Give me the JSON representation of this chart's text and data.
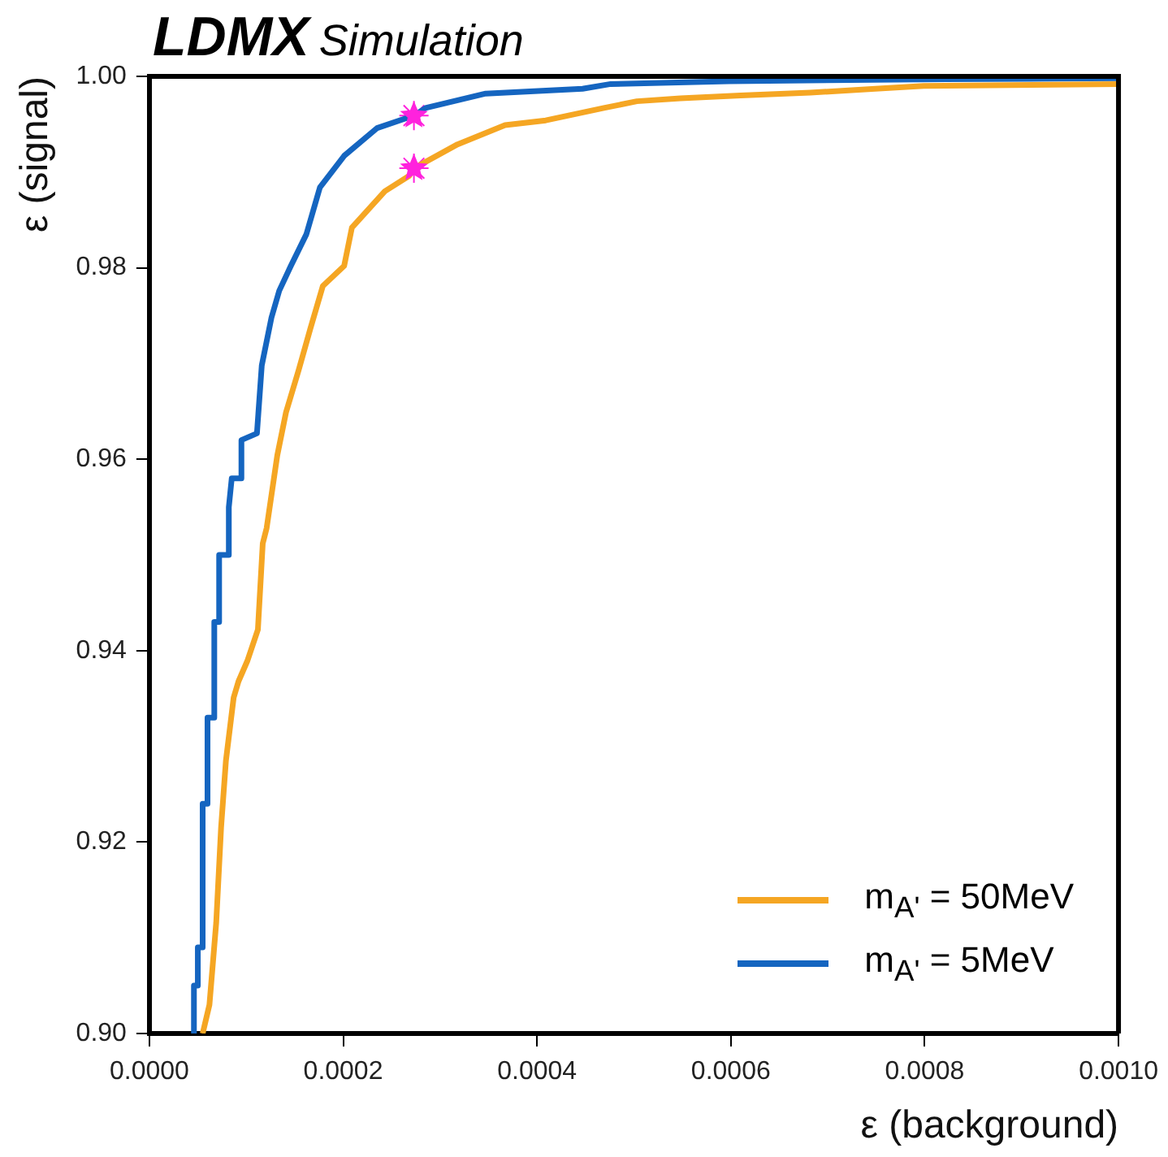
{
  "chart_data": {
    "type": "line",
    "title": "LDMX",
    "subtitle": "Simulation",
    "xlabel": "ε (background)",
    "ylabel": "ε (signal)",
    "xlim": [
      0,
      0.001
    ],
    "xticks": [
      {
        "value": 0,
        "label": "0.0000"
      },
      {
        "value": 0.0002,
        "label": "0.0002"
      },
      {
        "value": 0.0004,
        "label": "0.0004"
      },
      {
        "value": 0.0006,
        "label": "0.0006"
      },
      {
        "value": 0.0008,
        "label": "0.0008"
      },
      {
        "value": 0.001,
        "label": "0.0010"
      }
    ],
    "ylim": [
      0.9,
      1.0
    ],
    "yticks": [
      {
        "value": 0.9,
        "label": "0.90"
      },
      {
        "value": 0.92,
        "label": "0.92"
      },
      {
        "value": 0.94,
        "label": "0.94"
      },
      {
        "value": 0.96,
        "label": "0.96"
      },
      {
        "value": 0.98,
        "label": "0.98"
      },
      {
        "value": 1.0,
        "label": "1.00"
      }
    ],
    "grid": false,
    "legend": "bottom right",
    "marker": "none",
    "line_style": "solid",
    "series": [
      {
        "name": "m$_{A'}$ = 50MeV",
        "color": "#f5a623",
        "x": [
          5.5e-05,
          6.2e-05,
          6.9e-05,
          7.4e-05,
          7.9e-05,
          8.7e-05,
          9.2e-05,
          0.000101,
          0.000112,
          0.000117,
          0.000121,
          0.000132,
          0.000141,
          0.000154,
          0.000166,
          0.000179,
          0.000201,
          0.000209,
          0.000243,
          0.000268,
          0.000273,
          0.000318,
          0.000367,
          0.000409,
          0.000469,
          0.000503,
          0.000548,
          0.00061,
          0.000682,
          0.000749,
          0.000799,
          0.001
        ],
        "values": [
          0.9,
          0.903,
          0.9116,
          0.9215,
          0.9285,
          0.9351,
          0.9368,
          0.9389,
          0.9422,
          0.9512,
          0.9528,
          0.9604,
          0.9649,
          0.9693,
          0.9736,
          0.9781,
          0.9802,
          0.9842,
          0.988,
          0.9896,
          0.9904,
          0.9929,
          0.9949,
          0.9954,
          0.9967,
          0.9974,
          0.9977,
          0.998,
          0.9983,
          0.9987,
          0.999,
          0.9992
        ]
      },
      {
        "name": "m$_{A'}$ = 5MeV",
        "color": "#1565c0",
        "x": [
          4.6e-05,
          4.6e-05,
          5e-05,
          5e-05,
          5.5e-05,
          5.5e-05,
          6e-05,
          6e-05,
          6.7e-05,
          6.7e-05,
          7.2e-05,
          7.2e-05,
          8.2e-05,
          8.2e-05,
          8.5e-05,
          9.5e-05,
          9.5e-05,
          0.000111,
          0.000116,
          0.000126,
          0.000134,
          0.000146,
          0.000162,
          0.000176,
          0.000201,
          0.000235,
          0.000273,
          0.000285,
          0.000347,
          0.000447,
          0.000476,
          0.000598,
          0.000821,
          0.001
        ],
        "values": [
          0.9,
          0.905,
          0.905,
          0.909,
          0.909,
          0.924,
          0.924,
          0.933,
          0.933,
          0.943,
          0.943,
          0.95,
          0.95,
          0.955,
          0.958,
          0.958,
          0.962,
          0.9627,
          0.9698,
          0.9748,
          0.9776,
          0.9802,
          0.9835,
          0.9884,
          0.9917,
          0.9946,
          0.9959,
          0.9967,
          0.9982,
          0.9987,
          0.9992,
          0.9995,
          0.9997,
          0.9998
        ]
      },
      {
        "type": "scatter",
        "marker": "star",
        "color": "#ff22dd",
        "x": [
          0.000273,
          0.000273
        ],
        "values": [
          0.9959,
          0.9904
        ]
      }
    ]
  }
}
